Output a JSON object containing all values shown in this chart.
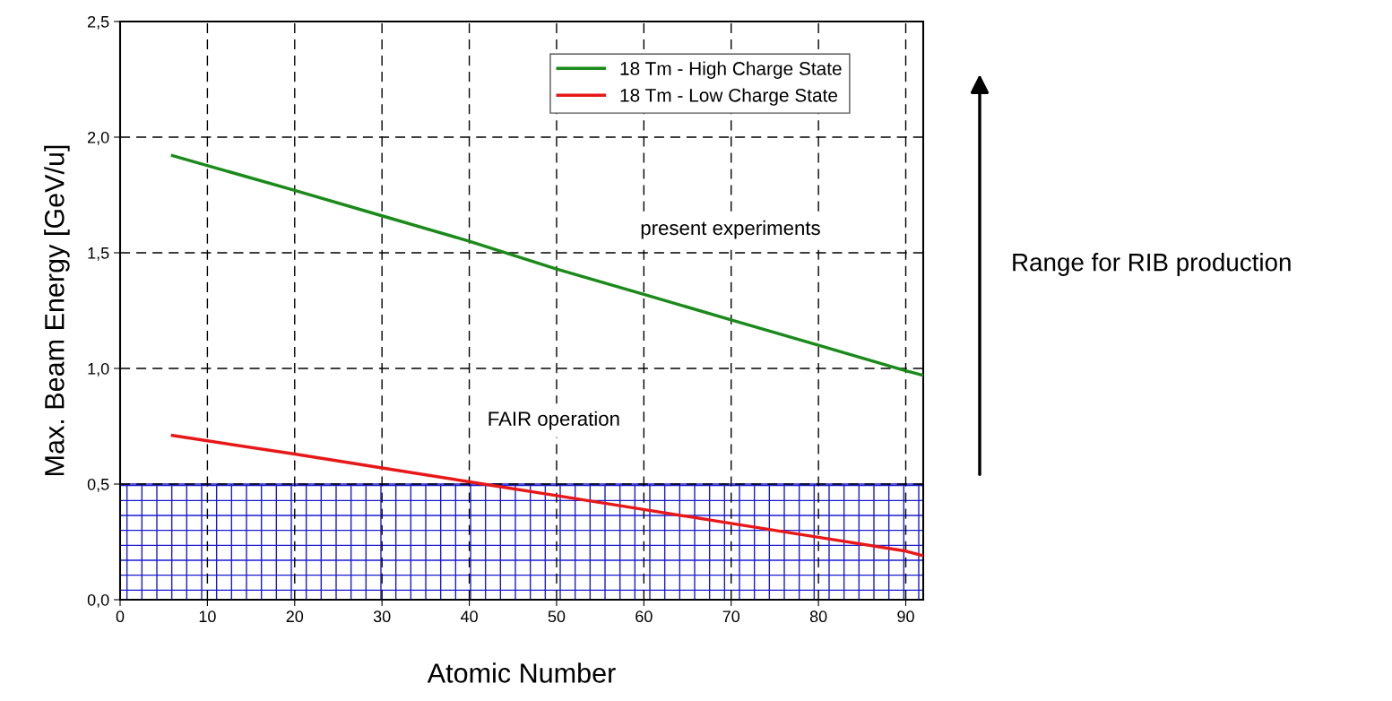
{
  "chart_data": {
    "type": "line",
    "xlabel": "Atomic Number",
    "ylabel": "Max. Beam Energy [GeV/u]",
    "x": [
      6,
      20,
      30,
      40,
      50,
      60,
      70,
      80,
      90,
      92
    ],
    "series": [
      {
        "name": "18 Tm - High Charge State",
        "color": "#1a8a1a",
        "values": [
          1.92,
          1.77,
          1.66,
          1.55,
          1.43,
          1.32,
          1.21,
          1.1,
          0.99,
          0.97
        ]
      },
      {
        "name": "18 Tm - Low Charge State",
        "color": "#e81818",
        "values": [
          0.71,
          0.63,
          0.57,
          0.51,
          0.45,
          0.39,
          0.33,
          0.27,
          0.21,
          0.19
        ]
      }
    ],
    "xlim": [
      0,
      92
    ],
    "xticks": [
      0,
      10,
      20,
      30,
      40,
      50,
      60,
      70,
      80,
      90
    ],
    "ylim": [
      0,
      2.5
    ],
    "yticks": [
      {
        "value": 0,
        "label": "0,0"
      },
      {
        "value": 0.5,
        "label": "0,5"
      },
      {
        "value": 1.0,
        "label": "1,0"
      },
      {
        "value": 1.5,
        "label": "1,5"
      },
      {
        "value": 2.0,
        "label": "2,0"
      },
      {
        "value": 2.5,
        "label": "2,5"
      }
    ],
    "bands": [
      {
        "axis": "y",
        "from": 0,
        "to": 0.5,
        "color": "#1a1ad0"
      }
    ],
    "annotations": [
      "present experiments",
      "FAIR operation",
      "Range for RIB production"
    ],
    "grid": true,
    "legend": "top right",
    "line_style": "solid",
    "marker": "none"
  }
}
